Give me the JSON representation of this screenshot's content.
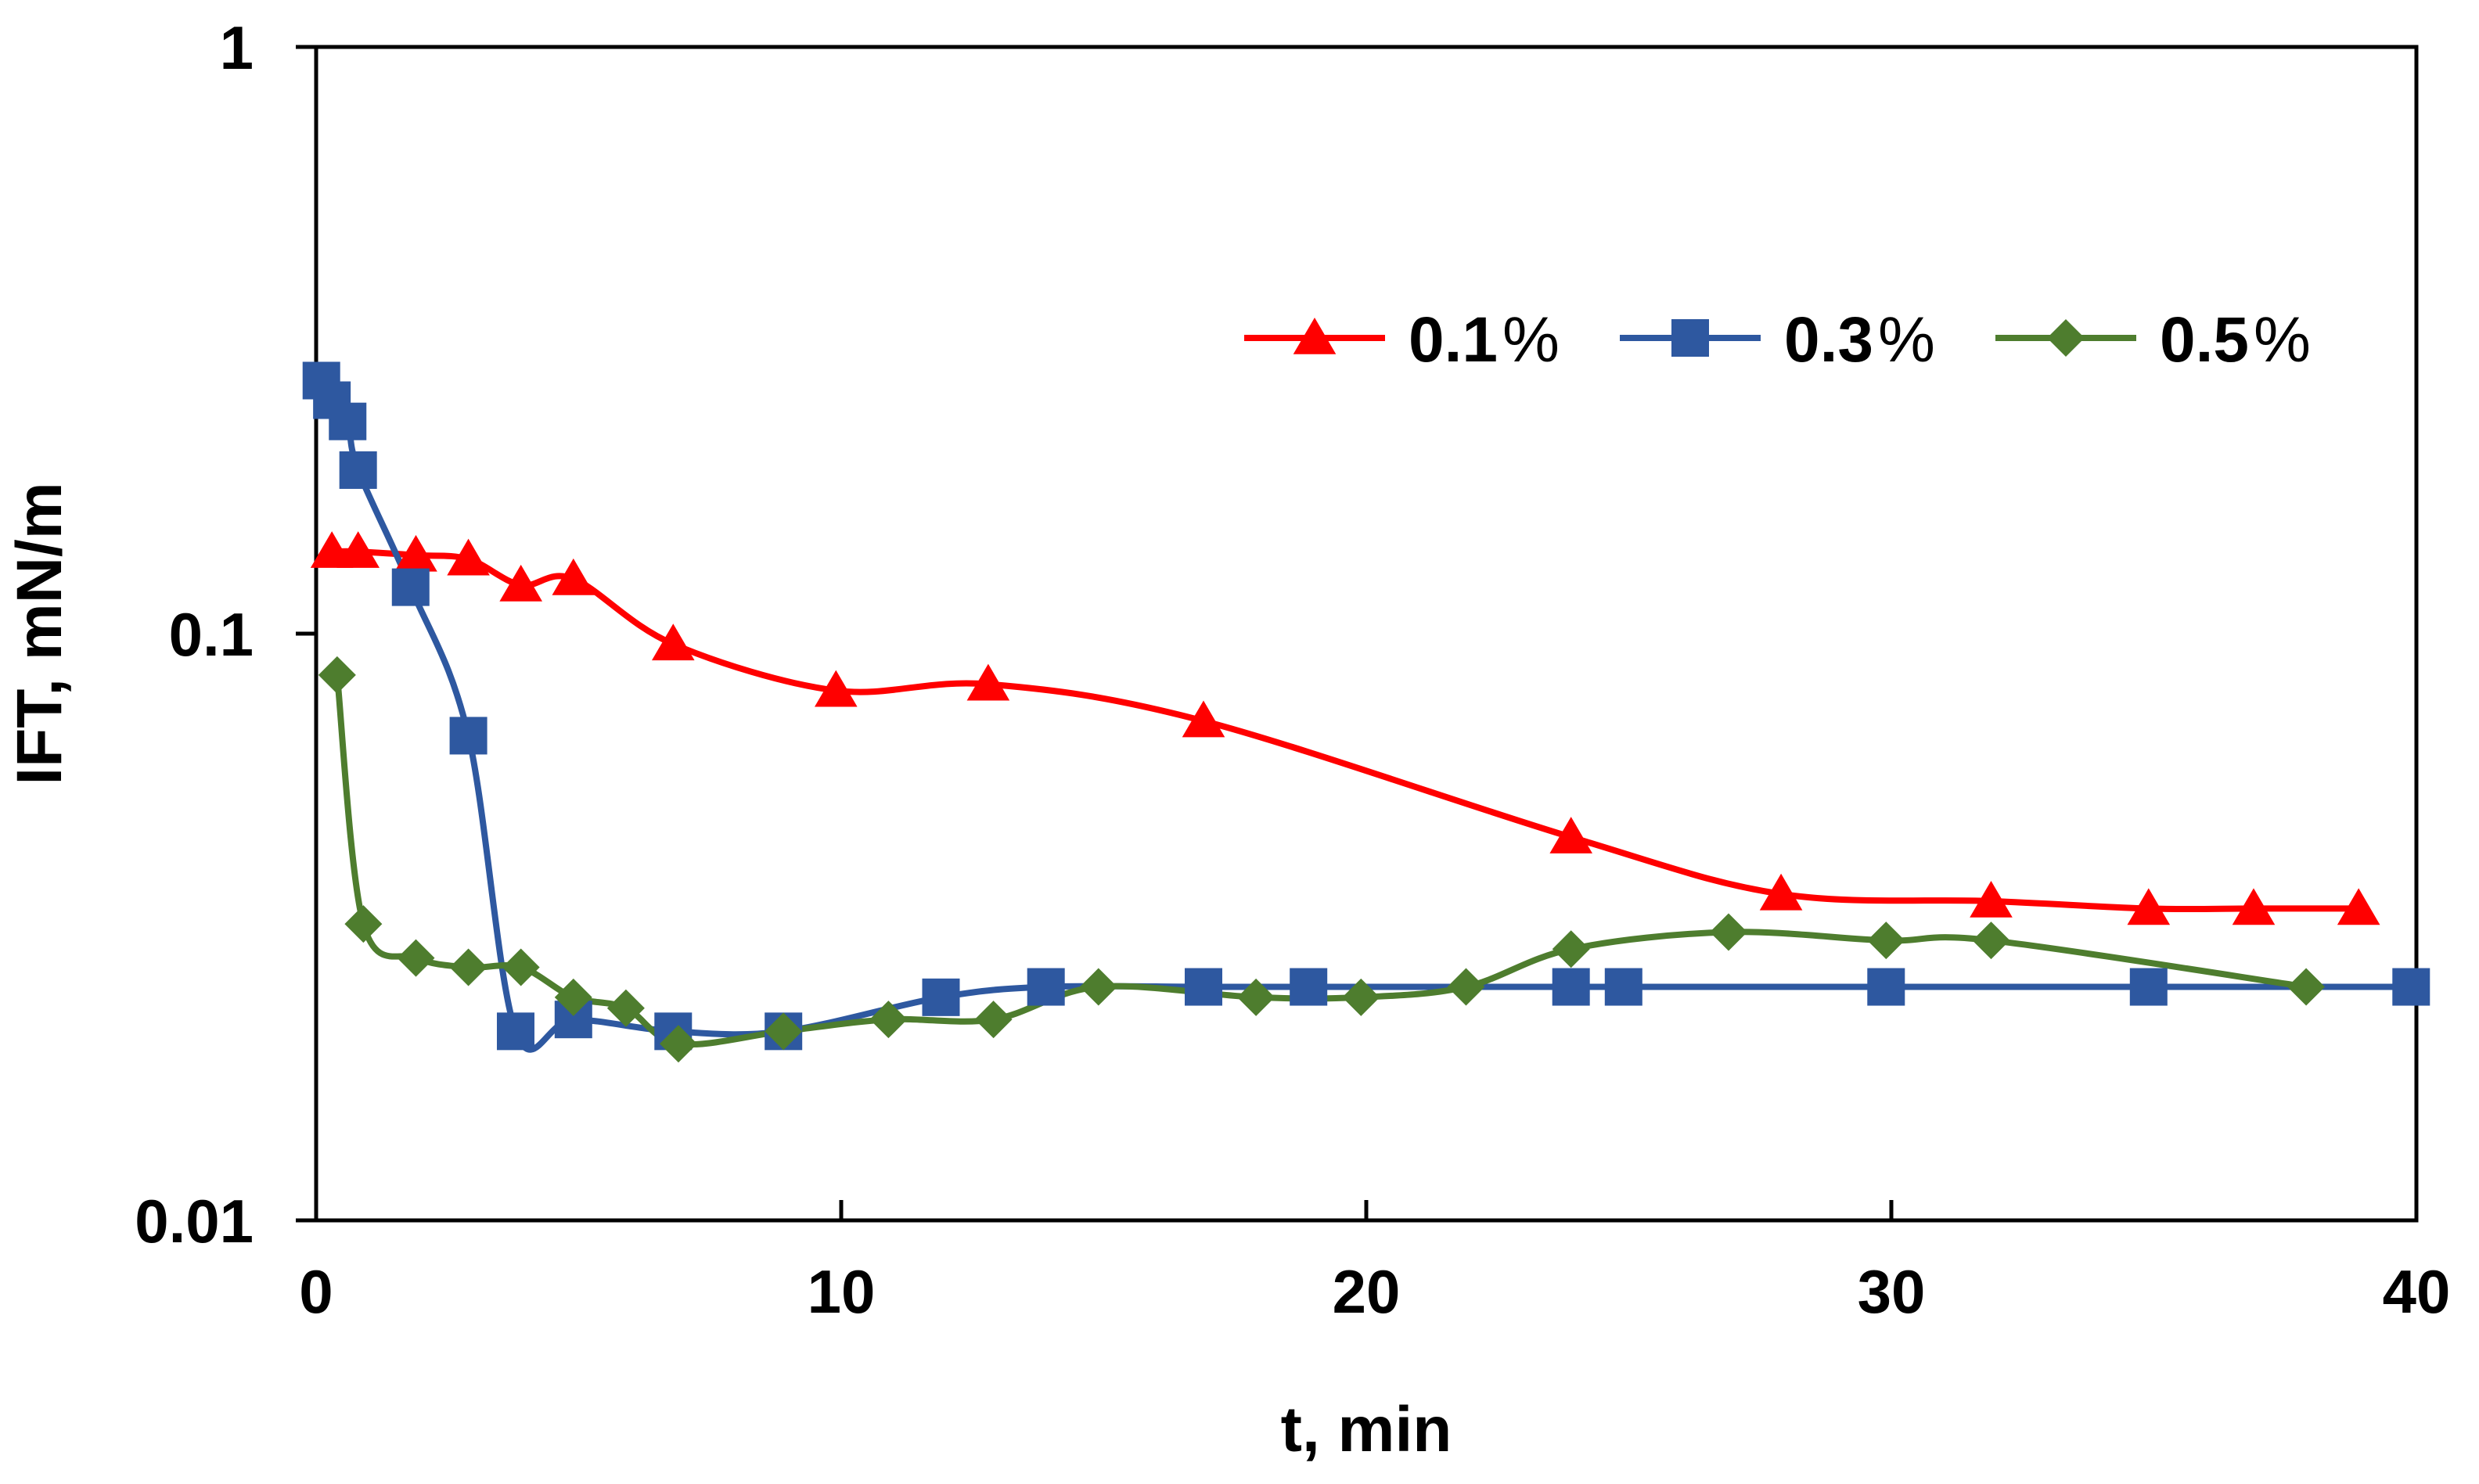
{
  "chart_data": {
    "type": "line",
    "title": "",
    "xlabel": "t, min",
    "ylabel": "IFT, mN/m",
    "xlim": [
      0,
      40
    ],
    "ylim": [
      0.01,
      1
    ],
    "yscale": "log",
    "grid": false,
    "legend_position": "top-right",
    "x_ticks": [
      0,
      10,
      20,
      30,
      40
    ],
    "x_tick_labels": [
      "0",
      "10",
      "20",
      "30",
      "40"
    ],
    "y_ticks": [
      0.01,
      0.1,
      1
    ],
    "y_tick_labels": [
      "0.01",
      "0.1",
      "1"
    ],
    "series": [
      {
        "name": "0.1%",
        "legend_label": "0.1",
        "legend_suffix": "%",
        "color": "#ff0000",
        "marker": "triangle",
        "x": [
          0.3,
          0.8,
          1.9,
          2.9,
          3.9,
          4.9,
          6.8,
          9.9,
          12.8,
          16.9,
          23.9,
          27.9,
          31.9,
          34.9,
          36.9,
          38.9
        ],
        "y": [
          0.138,
          0.138,
          0.136,
          0.134,
          0.121,
          0.124,
          0.096,
          0.08,
          0.082,
          0.071,
          0.045,
          0.036,
          0.035,
          0.034,
          0.034,
          0.034
        ]
      },
      {
        "name": "0.3%",
        "legend_label": "0.3",
        "legend_suffix": "%",
        "color": "#2e58a0",
        "marker": "square",
        "x": [
          0.1,
          0.3,
          0.6,
          0.8,
          1.8,
          2.9,
          3.8,
          4.9,
          6.8,
          8.9,
          11.9,
          13.9,
          16.9,
          18.9,
          23.9,
          24.9,
          29.9,
          34.9,
          39.9
        ],
        "y": [
          0.27,
          0.25,
          0.23,
          0.19,
          0.12,
          0.067,
          0.021,
          0.022,
          0.021,
          0.021,
          0.024,
          0.025,
          0.025,
          0.025,
          0.025,
          0.025,
          0.025,
          0.025,
          0.025
        ]
      },
      {
        "name": "0.5%",
        "legend_label": "0.5",
        "legend_suffix": "%",
        "color": "#4e7d2e",
        "marker": "diamond",
        "x": [
          0.4,
          0.9,
          1.9,
          2.9,
          3.9,
          4.9,
          5.9,
          6.9,
          8.9,
          10.9,
          12.9,
          14.9,
          17.9,
          19.9,
          21.9,
          23.9,
          26.9,
          29.9,
          31.9,
          37.9
        ],
        "y": [
          0.085,
          0.032,
          0.028,
          0.027,
          0.027,
          0.024,
          0.023,
          0.02,
          0.021,
          0.022,
          0.022,
          0.025,
          0.024,
          0.024,
          0.025,
          0.029,
          0.031,
          0.03,
          0.03,
          0.025
        ]
      }
    ]
  }
}
